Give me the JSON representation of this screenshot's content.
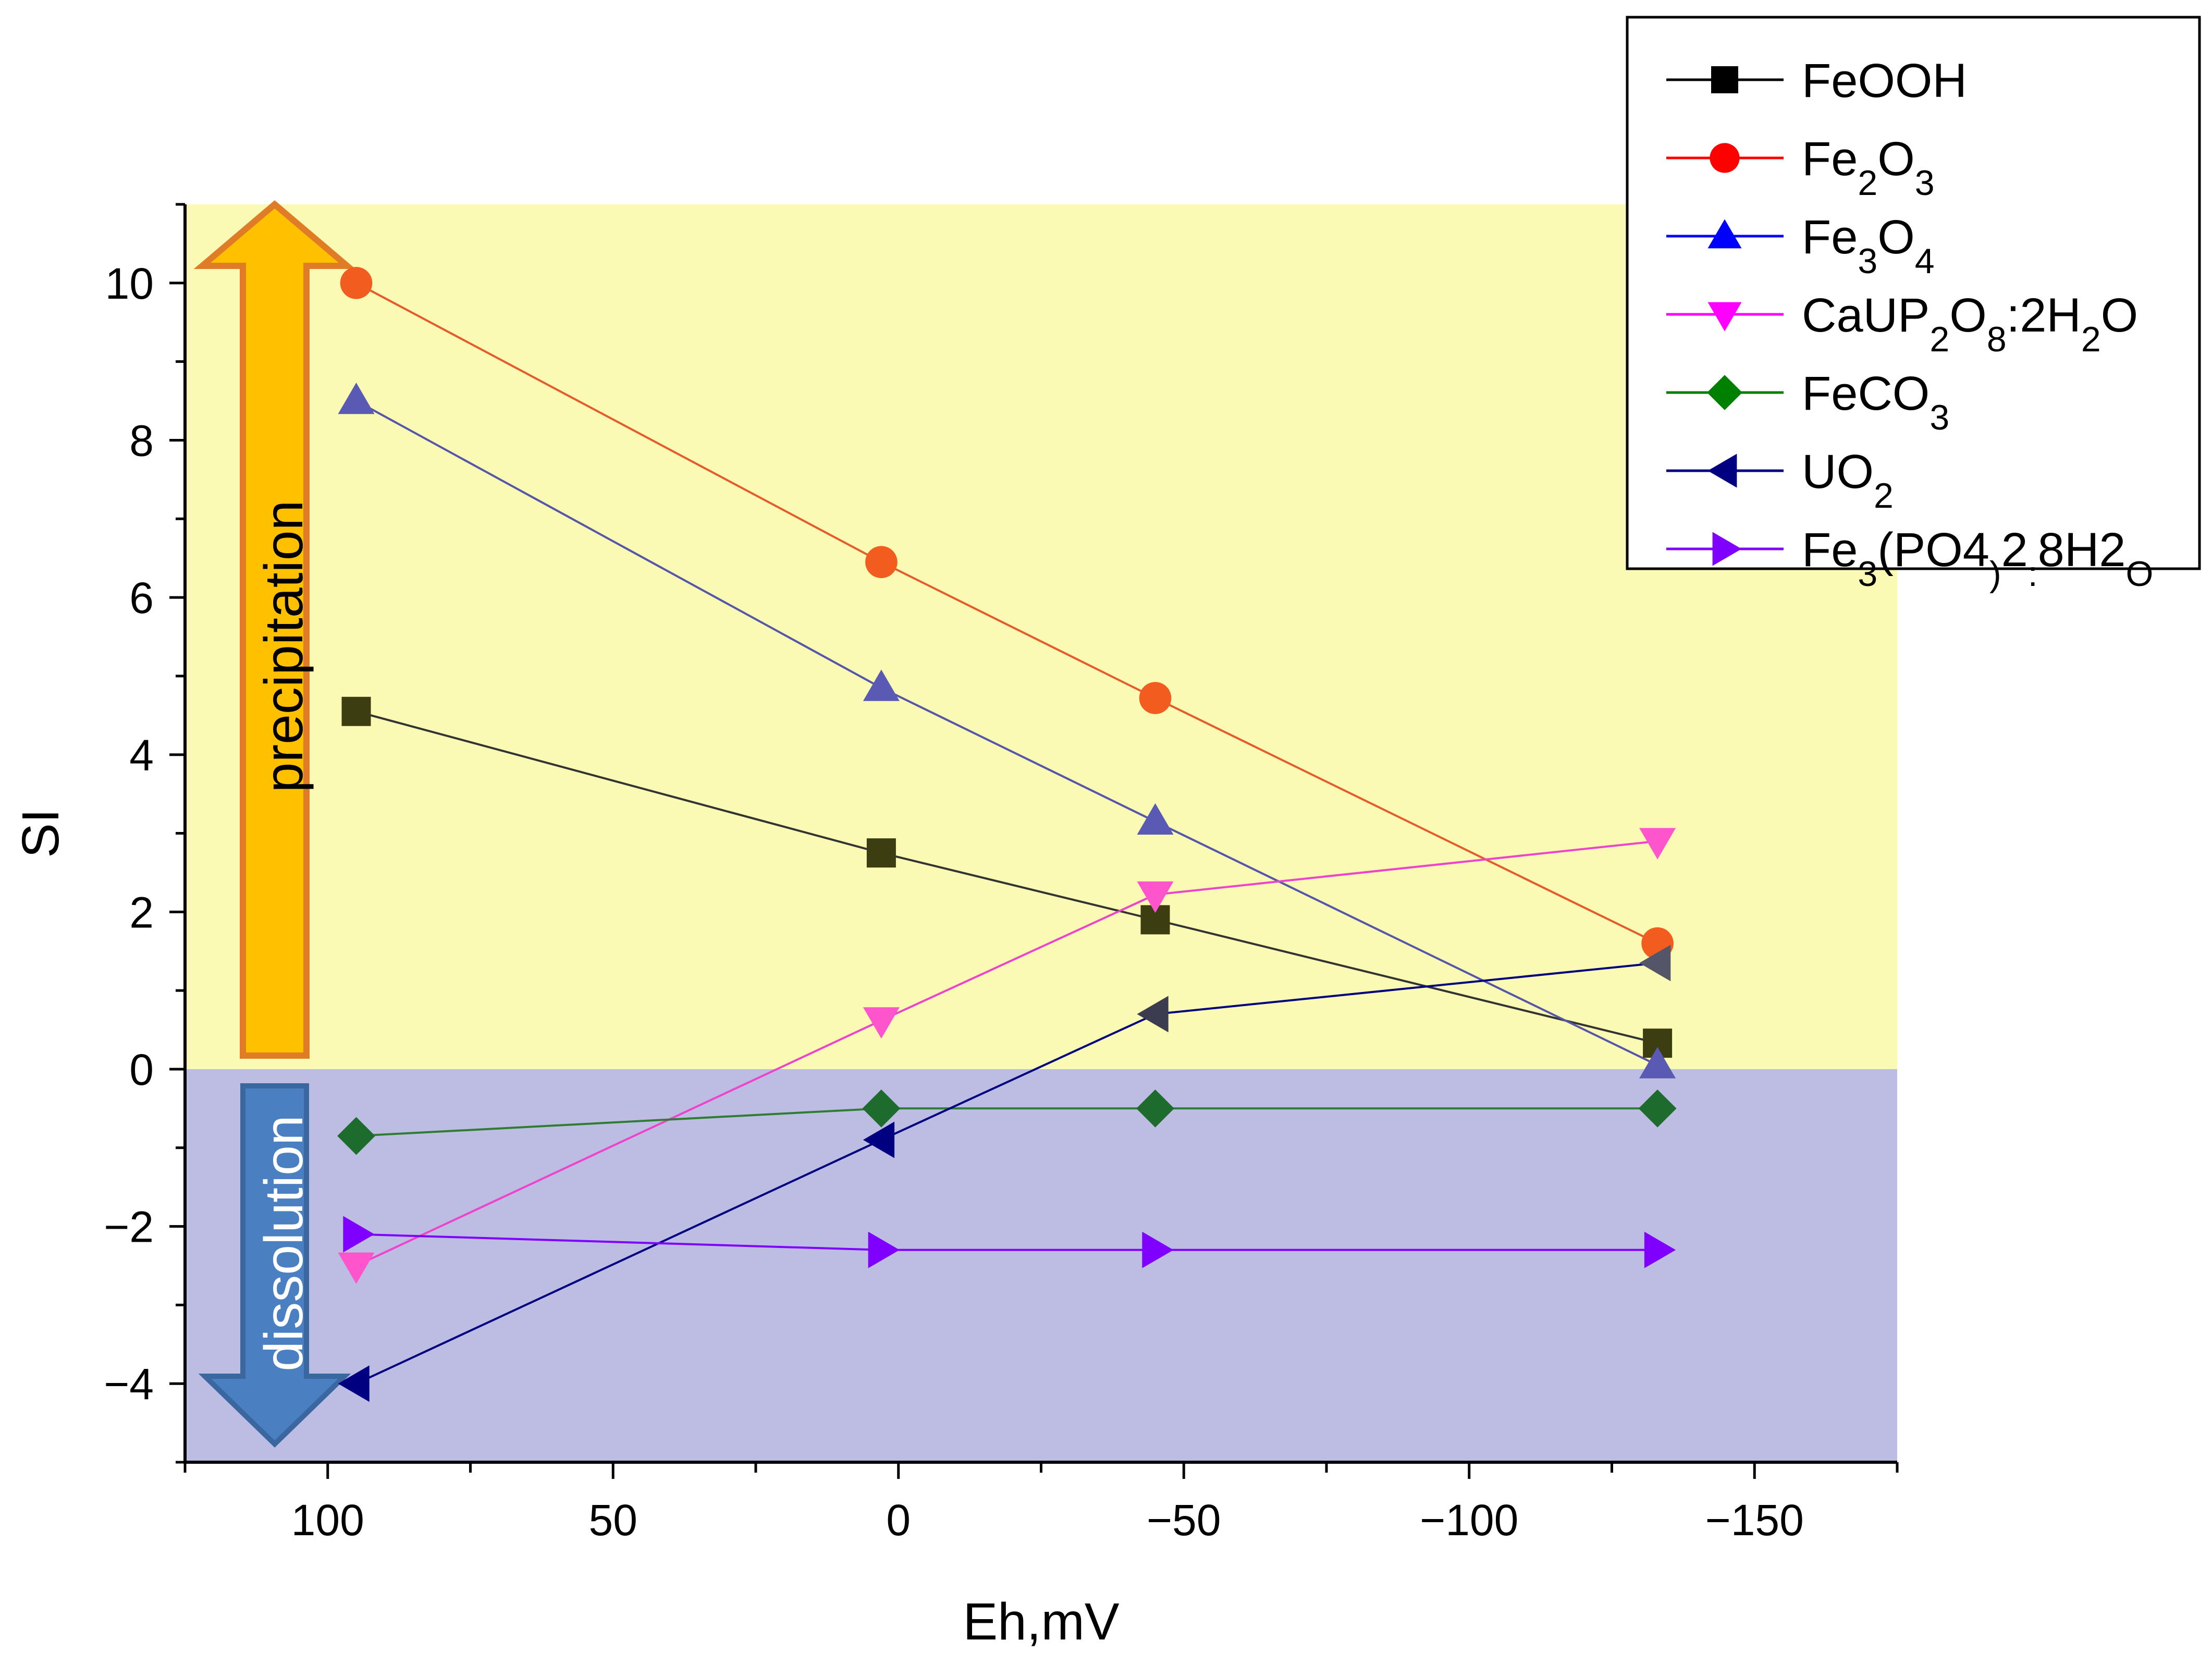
{
  "chart_data": {
    "type": "line",
    "title": "",
    "xlabel": "Eh,mV",
    "ylabel": "SI",
    "xlim": [
      125,
      -175
    ],
    "ylim": [
      -5,
      11
    ],
    "x_ticks": [
      100,
      50,
      0,
      -50,
      -100,
      -150
    ],
    "x_tick_labels": [
      "100",
      "50",
      "0",
      "−50",
      "−100",
      "−150"
    ],
    "y_ticks": [
      10,
      8,
      6,
      4,
      2,
      0,
      -2,
      -4
    ],
    "y_tick_labels": [
      "10",
      "8",
      "6",
      "4",
      "2",
      "0",
      "−2",
      "−4"
    ],
    "x": [
      95,
      3,
      -45,
      -133
    ],
    "regions": [
      {
        "label": "precipitation",
        "from": 0,
        "to": 11,
        "color": "#fafab4",
        "arrow_color": "#ffc000",
        "arrow_edge": "#e07b26",
        "text_color": "#000000"
      },
      {
        "label": "dissolution",
        "from": -5,
        "to": 0,
        "color": "#bdbde3",
        "arrow_color": "#4a7fc1",
        "arrow_edge": "#3b67a1",
        "text_color": "#ffffff"
      }
    ],
    "series": [
      {
        "name": "FeOOH",
        "legend_text": "FeOOH",
        "legend_subs": [],
        "marker": "square",
        "color": "#000000",
        "line_color": "#333333",
        "marker_fill": "#3d3d12",
        "values": [
          4.55,
          2.75,
          1.9,
          0.33
        ]
      },
      {
        "name": "Fe2O3",
        "legend_text": "Fe2O3",
        "legend_subs": [
          2,
          4
        ],
        "marker": "circle",
        "color": "#ff0000",
        "line_color": "#e55b2b",
        "marker_fill": "#f25c1e",
        "values": [
          10.0,
          6.45,
          4.72,
          1.6
        ]
      },
      {
        "name": "Fe3O4",
        "legend_text": "Fe3O4",
        "legend_subs": [
          2,
          4
        ],
        "marker": "triangle-up",
        "color": "#0000ff",
        "line_color": "#5555aa",
        "marker_fill": "#5a5ab5",
        "values": [
          8.5,
          4.85,
          3.15,
          0.05
        ]
      },
      {
        "name": "CaUP2O8:2H2O",
        "legend_text": "CaUP2O8:2H2O",
        "legend_subs": [
          4,
          6,
          10
        ],
        "marker": "triangle-down",
        "color": "#ff00ff",
        "line_color": "#ee44cc",
        "marker_fill": "#ff55cc",
        "values": [
          -2.5,
          0.62,
          2.22,
          2.9
        ]
      },
      {
        "name": "FeCO3",
        "legend_text": "FeCO3",
        "legend_subs": [
          4
        ],
        "marker": "diamond",
        "color": "#008000",
        "line_color": "#2e7d32",
        "marker_fill": "#1e6b2e",
        "values": [
          -0.85,
          -0.5,
          -0.5,
          -0.5
        ]
      },
      {
        "name": "UO2",
        "legend_text": "UO2",
        "legend_subs": [
          2
        ],
        "marker": "triangle-left",
        "color": "#000080",
        "line_color": "#000080",
        "marker_fill": [
          "#000080",
          "#000080",
          "#3c3c50",
          "#55556a"
        ],
        "values": [
          -4.0,
          -0.9,
          0.7,
          1.35
        ]
      },
      {
        "name": "Fe3(PO4)2:8H2O",
        "legend_text": "Fe3(PO4)2:8H2O",
        "legend_subs": [
          2,
          7,
          9,
          13
        ],
        "marker": "triangle-right",
        "color": "#8000ff",
        "line_color": "#8000ff",
        "marker_fill": "#8000ff",
        "values": [
          -2.1,
          -2.3,
          -2.3,
          -2.3
        ]
      }
    ]
  }
}
